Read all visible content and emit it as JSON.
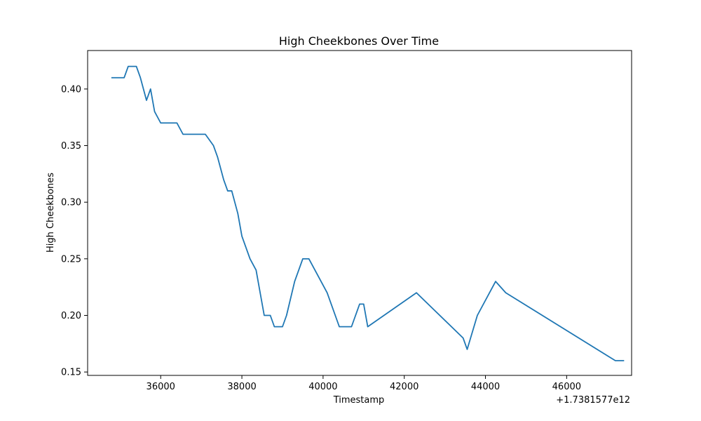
{
  "chart_data": {
    "type": "line",
    "title": "High Cheekbones Over Time",
    "xlabel": "Timestamp",
    "ylabel": "High Cheekbones",
    "offset_label": "+1.7381577e12",
    "xlim": [
      34200,
      47600
    ],
    "ylim": [
      0.147,
      0.434
    ],
    "xticks": [
      36000,
      38000,
      40000,
      42000,
      44000,
      46000
    ],
    "xtick_labels": [
      "36000",
      "38000",
      "40000",
      "42000",
      "44000",
      "46000"
    ],
    "yticks": [
      0.15,
      0.2,
      0.25,
      0.3,
      0.35,
      0.4
    ],
    "ytick_labels": [
      "0.15",
      "0.20",
      "0.25",
      "0.30",
      "0.35",
      "0.40"
    ],
    "grid": false,
    "series": [
      {
        "color": "#1f77b4",
        "x": [
          34800,
          35100,
          35200,
          35400,
          35500,
          35650,
          35750,
          35850,
          36000,
          36150,
          36400,
          36550,
          36700,
          37100,
          37300,
          37400,
          37550,
          37650,
          37750,
          37900,
          38000,
          38100,
          38200,
          38350,
          38450,
          38550,
          38700,
          38800,
          38900,
          39000,
          39100,
          39300,
          39500,
          39650,
          39800,
          40100,
          40400,
          40500,
          40700,
          40900,
          41000,
          41100,
          42300,
          43450,
          43550,
          43800,
          44250,
          44500,
          47200,
          47400
        ],
        "y": [
          0.41,
          0.41,
          0.42,
          0.42,
          0.41,
          0.39,
          0.4,
          0.38,
          0.37,
          0.37,
          0.37,
          0.36,
          0.36,
          0.36,
          0.35,
          0.34,
          0.32,
          0.31,
          0.31,
          0.29,
          0.27,
          0.26,
          0.25,
          0.24,
          0.22,
          0.2,
          0.2,
          0.19,
          0.19,
          0.19,
          0.2,
          0.23,
          0.25,
          0.25,
          0.24,
          0.22,
          0.19,
          0.19,
          0.19,
          0.21,
          0.21,
          0.19,
          0.22,
          0.18,
          0.17,
          0.2,
          0.23,
          0.22,
          0.16,
          0.16
        ]
      }
    ]
  }
}
